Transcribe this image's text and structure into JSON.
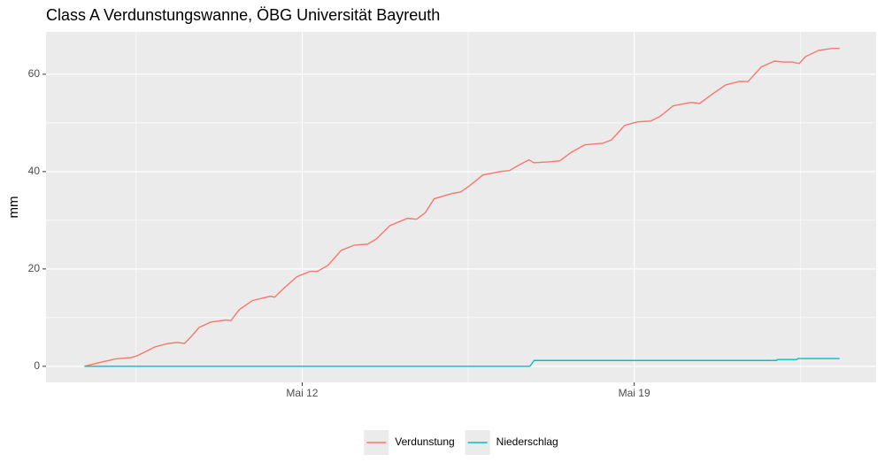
{
  "chart_data": {
    "type": "line",
    "title": "Class A Verdunstungswanne, ÖBG Universität Bayreuth",
    "y_label": "mm",
    "xlim": [
      6.6,
      24.1
    ],
    "xticks": [
      {
        "value": 12,
        "label": "Mai 12"
      },
      {
        "value": 19,
        "label": "Mai 19"
      }
    ],
    "ylim": [
      -3.3,
      68.7
    ],
    "yticks": [
      0,
      20,
      40,
      60
    ],
    "grid": true,
    "legend": "bottom",
    "series": [
      {
        "name": "Verdunstung",
        "color": "#F8766D",
        "x": [
          7.41,
          7.78,
          8.06,
          8.4,
          8.53,
          8.9,
          9.18,
          9.37,
          9.52,
          9.65,
          9.83,
          10.08,
          10.39,
          10.5,
          10.67,
          10.95,
          11.33,
          11.42,
          11.61,
          11.89,
          12.17,
          12.32,
          12.54,
          12.82,
          13.1,
          13.38,
          13.57,
          13.85,
          14.22,
          14.41,
          14.6,
          14.78,
          15.16,
          15.34,
          15.53,
          15.81,
          16.18,
          16.37,
          16.56,
          16.78,
          16.89,
          17.21,
          17.43,
          17.68,
          17.96,
          18.33,
          18.52,
          18.8,
          19.07,
          19.35,
          19.54,
          19.82,
          20.19,
          20.38,
          20.66,
          20.93,
          21.21,
          21.4,
          21.68,
          21.96,
          22.14,
          22.33,
          22.48,
          22.61,
          22.89,
          23.17,
          23.33
        ],
        "values": [
          0,
          0.9,
          1.5,
          1.8,
          2.2,
          4.0,
          4.7,
          4.9,
          4.7,
          6.0,
          8.0,
          9.1,
          9.5,
          9.4,
          11.6,
          13.5,
          14.4,
          14.2,
          16.0,
          18.4,
          19.5,
          19.5,
          20.7,
          23.8,
          24.9,
          25.1,
          26.2,
          28.9,
          30.4,
          30.2,
          31.6,
          34.4,
          35.5,
          35.8,
          37.1,
          39.3,
          40.0,
          40.2,
          41.3,
          42.4,
          41.8,
          42.0,
          42.2,
          44.0,
          45.5,
          45.8,
          46.5,
          49.5,
          50.2,
          50.4,
          51.3,
          53.5,
          54.2,
          54.0,
          56.0,
          57.8,
          58.5,
          58.5,
          61.5,
          62.7,
          62.5,
          62.5,
          62.2,
          63.6,
          64.9,
          65.3,
          65.3
        ]
      },
      {
        "name": "Niederschlag",
        "color": "#00BFC4",
        "x": [
          7.41,
          16.8,
          16.89,
          22.0,
          22.02,
          22.43,
          22.45,
          23.33
        ],
        "values": [
          0,
          0,
          1.2,
          1.2,
          1.4,
          1.4,
          1.6,
          1.6
        ]
      }
    ]
  }
}
